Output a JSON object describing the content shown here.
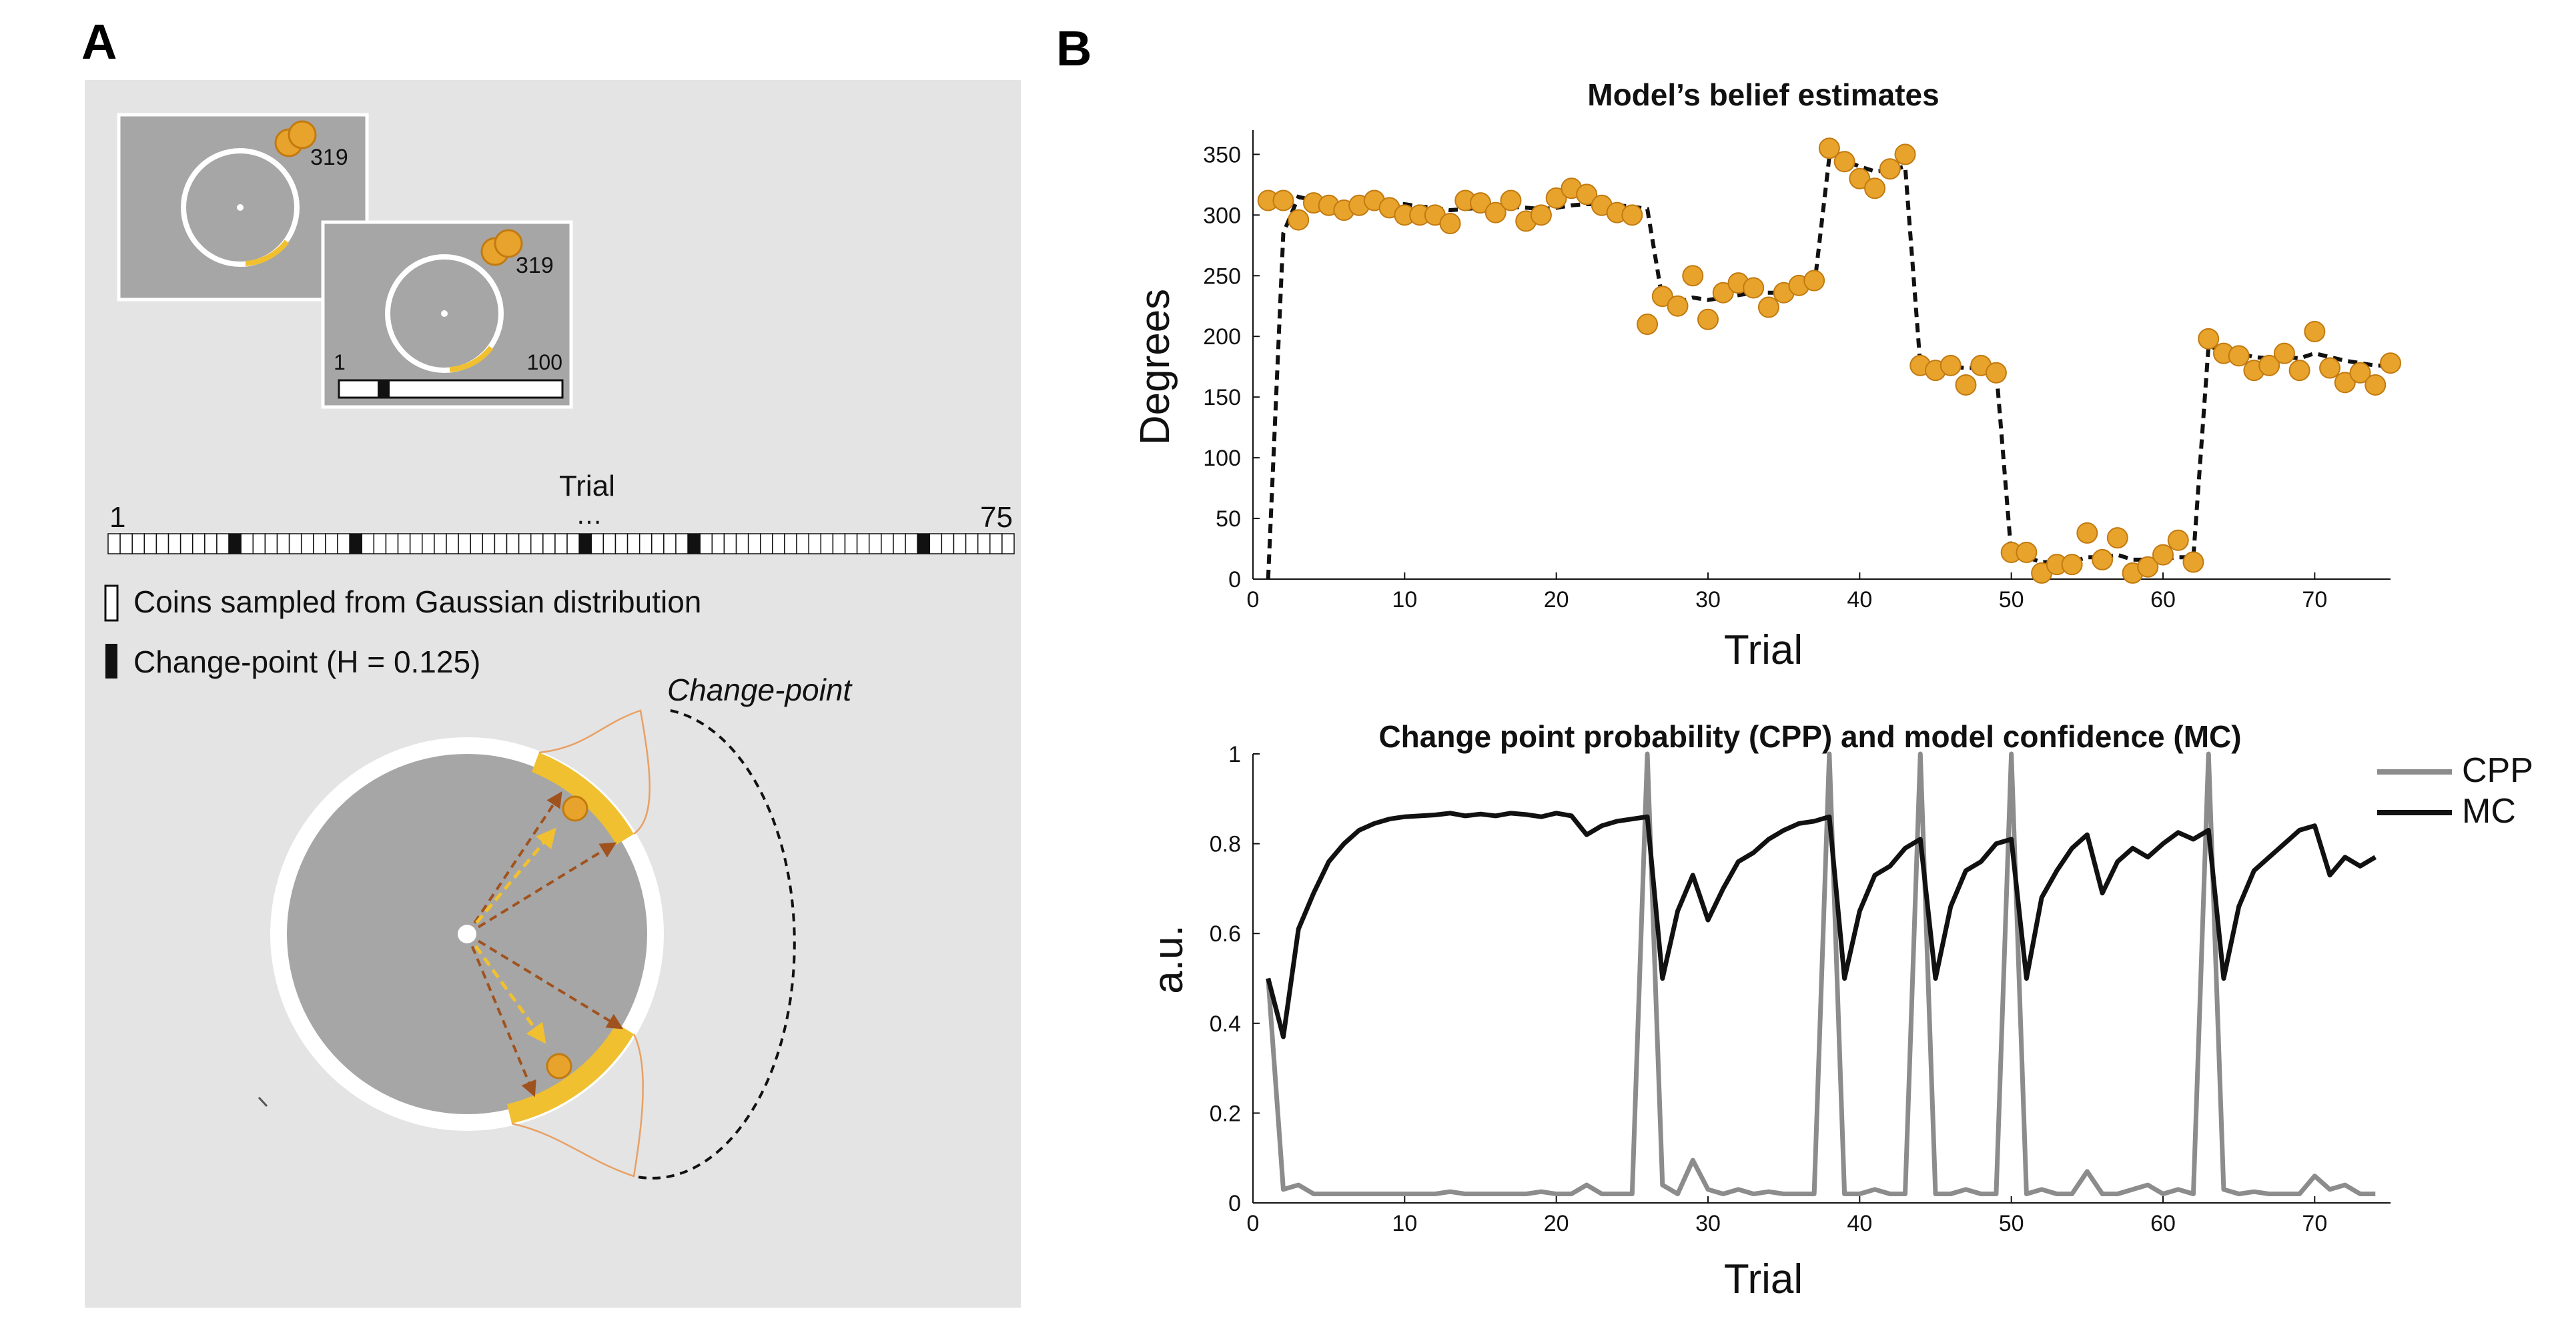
{
  "panels": {
    "a": {
      "letter": "A"
    },
    "b": {
      "letter": "B"
    }
  },
  "task": {
    "coin_count_1": "319",
    "coin_count_2": "319",
    "progress_min": "1",
    "progress_max": "100",
    "progress_fraction": 0.2
  },
  "timeline": {
    "label": "Trial",
    "start": "1",
    "end": "75",
    "ellipsis": "…",
    "num_cells": 75,
    "changepoint_cells": [
      10,
      20,
      39,
      48,
      67
    ]
  },
  "legend_a": {
    "coins_label": "Coins sampled from Gaussian distribution",
    "changepoint_label": "Change-point (H = 0.125)"
  },
  "circle_diagram": {
    "changepoint_label": "Change-point"
  },
  "colors": {
    "panel_bg": "#e4e4e4",
    "screen_bg": "#a6a6a6",
    "coin_fill": "#e8a32c",
    "coin_stroke": "#c27a10",
    "arc_yellow": "#f0c030",
    "arrow_brown": "#a0521e",
    "arrow_yellow": "#f0c030",
    "cpp_gray": "#8c8c8c",
    "mc_black": "#111111"
  },
  "chart_data": [
    {
      "type": "scatter",
      "title": "Model’s belief estimates",
      "xlabel": "Trial",
      "ylabel": "Degrees",
      "xlim": [
        0,
        75
      ],
      "ylim": [
        0,
        370
      ],
      "xticks": [
        0,
        10,
        20,
        30,
        40,
        50,
        60,
        70
      ],
      "yticks": [
        0,
        50,
        100,
        150,
        200,
        250,
        300,
        350
      ],
      "grid": false,
      "series": [
        {
          "kind": "points",
          "x": [
            1,
            2,
            3,
            4,
            5,
            6,
            7,
            8,
            9,
            10,
            11,
            12,
            13,
            14,
            15,
            16,
            17,
            18,
            19,
            20,
            21,
            22,
            23,
            24,
            25,
            26,
            27,
            28,
            29,
            30,
            31,
            32,
            33,
            34,
            35,
            36,
            37,
            38,
            39,
            40,
            41,
            42,
            43,
            44,
            45,
            46,
            47,
            48,
            49,
            50,
            51,
            52,
            53,
            54,
            55,
            56,
            57,
            58,
            59,
            60,
            61,
            62,
            63,
            64,
            65,
            66,
            67,
            68,
            69,
            70,
            71,
            72,
            73,
            74,
            75
          ],
          "y": [
            312,
            312,
            296,
            310,
            308,
            304,
            308,
            312,
            306,
            300,
            300,
            300,
            293,
            312,
            310,
            302,
            312,
            295,
            300,
            314,
            322,
            317,
            308,
            302,
            300,
            210,
            233,
            225,
            250,
            214,
            236,
            244,
            240,
            224,
            236,
            242,
            246,
            355,
            344,
            330,
            322,
            338,
            350,
            176,
            172,
            176,
            160,
            176,
            170,
            22,
            22,
            5,
            12,
            12,
            38,
            16,
            34,
            5,
            10,
            20,
            32,
            14,
            198,
            186,
            184,
            172,
            176,
            186,
            172,
            204,
            174,
            162,
            170,
            160,
            178
          ]
        },
        {
          "kind": "line",
          "dashed": true,
          "x": [
            1,
            2,
            3,
            4,
            5,
            6,
            7,
            8,
            9,
            10,
            11,
            12,
            13,
            14,
            15,
            16,
            17,
            18,
            19,
            20,
            21,
            22,
            23,
            24,
            25,
            26,
            27,
            28,
            29,
            30,
            31,
            32,
            33,
            34,
            35,
            36,
            37,
            38,
            39,
            40,
            41,
            42,
            43,
            44,
            45,
            46,
            47,
            48,
            49,
            50,
            51,
            52,
            53,
            54,
            55,
            56,
            57,
            58,
            59,
            60,
            61,
            62,
            63,
            64,
            65,
            66,
            67,
            68,
            69,
            70,
            71,
            72,
            73,
            74,
            75
          ],
          "y": [
            0,
            285,
            315,
            312,
            310,
            308,
            307,
            308,
            309,
            309,
            307,
            306,
            304,
            305,
            306,
            306,
            307,
            306,
            305,
            306,
            308,
            309,
            309,
            308,
            307,
            305,
            230,
            228,
            232,
            230,
            232,
            234,
            236,
            236,
            236,
            238,
            240,
            348,
            345,
            340,
            336,
            337,
            340,
            176,
            175,
            175,
            174,
            174,
            173,
            20,
            18,
            14,
            14,
            14,
            18,
            18,
            20,
            16,
            16,
            17,
            18,
            18,
            192,
            188,
            186,
            183,
            182,
            183,
            182,
            186,
            183,
            180,
            178,
            176,
            176
          ]
        }
      ]
    },
    {
      "type": "line",
      "title": "Change point probability (CPP) and model confidence (MC)",
      "xlabel": "Trial",
      "ylabel": "a.u.",
      "xlim": [
        0,
        75
      ],
      "ylim": [
        0,
        1
      ],
      "xticks": [
        0,
        10,
        20,
        30,
        40,
        50,
        60,
        70
      ],
      "yticks": [
        0,
        0.2,
        0.4,
        0.6,
        0.8,
        1
      ],
      "grid": false,
      "legend_position": "top-right",
      "x": [
        1,
        2,
        3,
        4,
        5,
        6,
        7,
        8,
        9,
        10,
        11,
        12,
        13,
        14,
        15,
        16,
        17,
        18,
        19,
        20,
        21,
        22,
        23,
        24,
        25,
        26,
        27,
        28,
        29,
        30,
        31,
        32,
        33,
        34,
        35,
        36,
        37,
        38,
        39,
        40,
        41,
        42,
        43,
        44,
        45,
        46,
        47,
        48,
        49,
        50,
        51,
        52,
        53,
        54,
        55,
        56,
        57,
        58,
        59,
        60,
        61,
        62,
        63,
        64,
        65,
        66,
        67,
        68,
        69,
        70,
        71,
        72,
        73,
        74
      ],
      "series": [
        {
          "name": "CPP",
          "values": [
            0.5,
            0.03,
            0.04,
            0.02,
            0.02,
            0.02,
            0.02,
            0.02,
            0.02,
            0.02,
            0.02,
            0.02,
            0.025,
            0.02,
            0.02,
            0.02,
            0.02,
            0.02,
            0.025,
            0.02,
            0.02,
            0.04,
            0.02,
            0.02,
            0.02,
            1.0,
            0.04,
            0.02,
            0.095,
            0.03,
            0.02,
            0.03,
            0.02,
            0.025,
            0.02,
            0.02,
            0.02,
            1.0,
            0.02,
            0.02,
            0.03,
            0.02,
            0.02,
            1.0,
            0.02,
            0.02,
            0.03,
            0.02,
            0.02,
            1.0,
            0.02,
            0.03,
            0.02,
            0.02,
            0.07,
            0.02,
            0.02,
            0.03,
            0.04,
            0.02,
            0.03,
            0.02,
            1.0,
            0.03,
            0.02,
            0.025,
            0.02,
            0.02,
            0.02,
            0.06,
            0.03,
            0.04,
            0.02,
            0.02
          ]
        },
        {
          "name": "MC",
          "values": [
            0.5,
            0.37,
            0.61,
            0.69,
            0.76,
            0.8,
            0.83,
            0.845,
            0.855,
            0.86,
            0.862,
            0.864,
            0.868,
            0.862,
            0.866,
            0.862,
            0.868,
            0.865,
            0.86,
            0.868,
            0.862,
            0.82,
            0.84,
            0.85,
            0.855,
            0.86,
            0.5,
            0.65,
            0.73,
            0.63,
            0.7,
            0.76,
            0.78,
            0.81,
            0.83,
            0.845,
            0.85,
            0.86,
            0.5,
            0.65,
            0.73,
            0.75,
            0.79,
            0.81,
            0.5,
            0.66,
            0.74,
            0.76,
            0.8,
            0.81,
            0.5,
            0.68,
            0.74,
            0.79,
            0.82,
            0.69,
            0.76,
            0.79,
            0.77,
            0.8,
            0.825,
            0.81,
            0.83,
            0.5,
            0.66,
            0.74,
            0.77,
            0.8,
            0.83,
            0.84,
            0.73,
            0.77,
            0.75,
            0.77
          ]
        }
      ]
    }
  ]
}
